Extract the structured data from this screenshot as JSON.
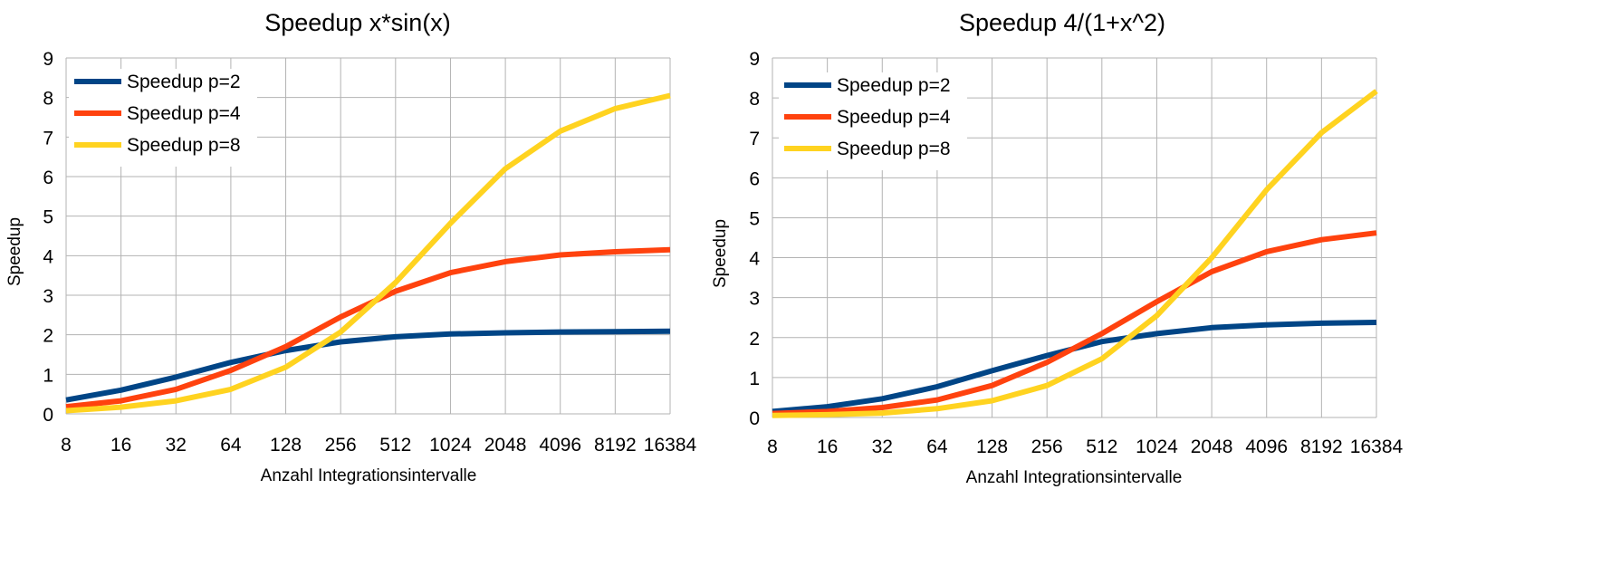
{
  "chart_data": [
    {
      "type": "line",
      "title": "Speedup x*sin(x)",
      "xlabel": "Anzahl Integrationsintervalle",
      "ylabel": "Speedup",
      "categories": [
        "8",
        "16",
        "32",
        "64",
        "128",
        "256",
        "512",
        "1024",
        "2048",
        "4096",
        "8192",
        "16384"
      ],
      "ylim": [
        0,
        9
      ],
      "yticks": [
        "0",
        "1",
        "2",
        "3",
        "4",
        "5",
        "6",
        "7",
        "8",
        "9"
      ],
      "grid": true,
      "legend": "top-left",
      "series": [
        {
          "name": "Speedup p=2",
          "color": "#004586",
          "values": [
            0.35,
            0.6,
            0.93,
            1.3,
            1.6,
            1.82,
            1.95,
            2.02,
            2.05,
            2.07,
            2.08,
            2.09
          ]
        },
        {
          "name": "Speedup p=4",
          "color": "#ff420e",
          "values": [
            0.18,
            0.33,
            0.62,
            1.1,
            1.7,
            2.45,
            3.1,
            3.57,
            3.85,
            4.02,
            4.1,
            4.15
          ]
        },
        {
          "name": "Speedup p=8",
          "color": "#ffd320",
          "values": [
            0.08,
            0.17,
            0.33,
            0.62,
            1.18,
            2.07,
            3.32,
            4.82,
            6.2,
            7.15,
            7.72,
            8.05
          ]
        }
      ]
    },
    {
      "type": "line",
      "title": "Speedup 4/(1+x^2)",
      "xlabel": "Anzahl Integrationsintervalle",
      "ylabel": "Speedup",
      "categories": [
        "8",
        "16",
        "32",
        "64",
        "128",
        "256",
        "512",
        "1024",
        "2048",
        "4096",
        "8192",
        "16384"
      ],
      "ylim": [
        0,
        9
      ],
      "yticks": [
        "0",
        "1",
        "2",
        "3",
        "4",
        "5",
        "6",
        "7",
        "8",
        "9"
      ],
      "grid": true,
      "legend": "top-left",
      "series": [
        {
          "name": "Speedup p=2",
          "color": "#004586",
          "values": [
            0.15,
            0.27,
            0.47,
            0.77,
            1.17,
            1.55,
            1.9,
            2.1,
            2.25,
            2.32,
            2.36,
            2.38
          ]
        },
        {
          "name": "Speedup p=4",
          "color": "#ff420e",
          "values": [
            0.1,
            0.15,
            0.25,
            0.44,
            0.8,
            1.38,
            2.1,
            2.9,
            3.65,
            4.15,
            4.45,
            4.62
          ]
        },
        {
          "name": "Speedup p=8",
          "color": "#ffd320",
          "values": [
            0.05,
            0.07,
            0.11,
            0.22,
            0.42,
            0.8,
            1.47,
            2.55,
            4.0,
            5.7,
            7.13,
            8.17
          ]
        }
      ]
    }
  ]
}
